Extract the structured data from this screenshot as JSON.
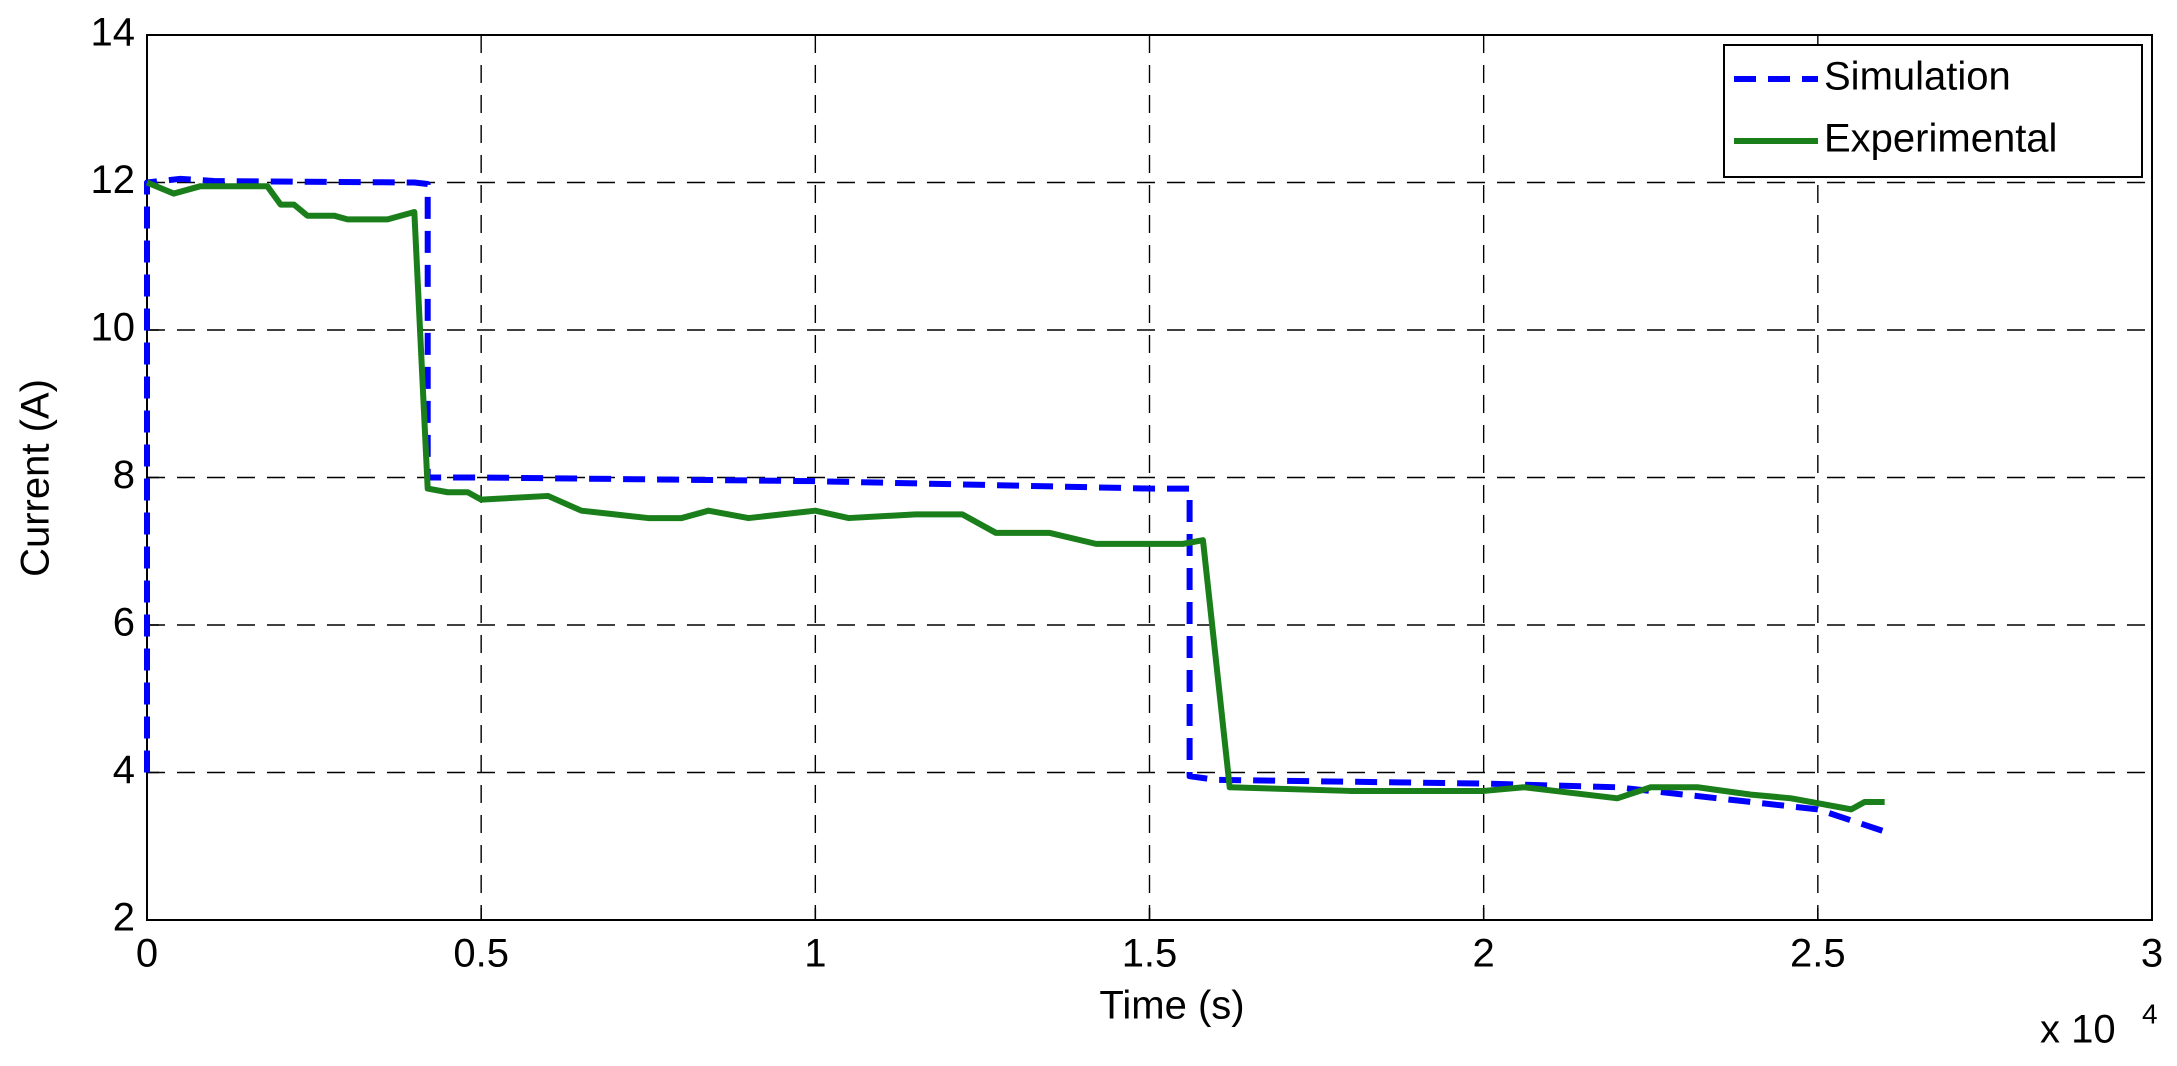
{
  "chart_data": {
    "type": "line",
    "x_label": "Time (s)",
    "y_label": "Current (A)",
    "x_multiplier": "x 10",
    "x_multiplier_exponent": "4",
    "xlim": [
      0,
      3
    ],
    "xticks": [
      0,
      0.5,
      1,
      1.5,
      2,
      2.5,
      3
    ],
    "ylim": [
      2,
      14
    ],
    "yticks": [
      2,
      4,
      6,
      8,
      10,
      12,
      14
    ],
    "grid": true,
    "legend": "upper right",
    "series": [
      {
        "name": "Simulation",
        "color": "#0000ff",
        "dash": true,
        "x": [
          0,
          0,
          0.05,
          0.1,
          0.4,
          0.42,
          0.42,
          0.5,
          1.0,
          1.5,
          1.56,
          1.56,
          1.6,
          2.0,
          2.2,
          2.4,
          2.5,
          2.6
        ],
        "values": [
          4,
          12,
          12.05,
          12.02,
          12.0,
          11.98,
          8.0,
          8.0,
          7.95,
          7.85,
          7.85,
          3.95,
          3.9,
          3.85,
          3.8,
          3.6,
          3.5,
          3.2
        ]
      },
      {
        "name": "Experimental",
        "color": "#1a7f1a",
        "dash": false,
        "x": [
          0,
          0.04,
          0.08,
          0.18,
          0.2,
          0.22,
          0.24,
          0.28,
          0.3,
          0.36,
          0.4,
          0.42,
          0.45,
          0.48,
          0.5,
          0.6,
          0.65,
          0.7,
          0.75,
          0.8,
          0.84,
          0.9,
          1.0,
          1.05,
          1.15,
          1.22,
          1.27,
          1.35,
          1.42,
          1.55,
          1.58,
          1.62,
          1.8,
          2.0,
          2.06,
          2.2,
          2.25,
          2.32,
          2.4,
          2.46,
          2.55,
          2.57,
          2.6
        ],
        "values": [
          12,
          11.85,
          11.95,
          11.95,
          11.7,
          11.7,
          11.55,
          11.55,
          11.5,
          11.5,
          11.6,
          7.85,
          7.8,
          7.8,
          7.7,
          7.75,
          7.55,
          7.5,
          7.45,
          7.45,
          7.55,
          7.45,
          7.55,
          7.45,
          7.5,
          7.5,
          7.25,
          7.25,
          7.1,
          7.1,
          7.15,
          3.8,
          3.75,
          3.75,
          3.8,
          3.65,
          3.8,
          3.8,
          3.7,
          3.65,
          3.5,
          3.6,
          3.6
        ]
      }
    ]
  }
}
